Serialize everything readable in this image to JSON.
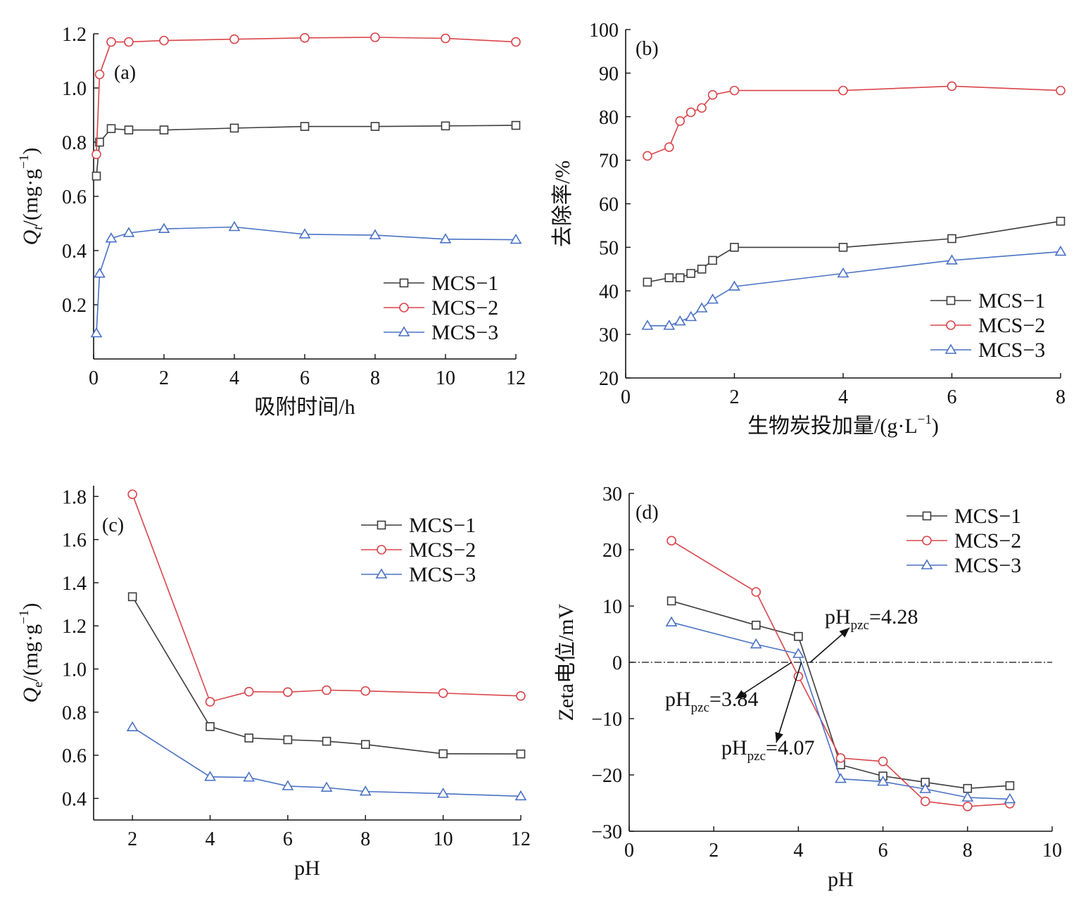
{
  "chart_data": [
    {
      "id": "a",
      "type": "line",
      "panel_label": "(a)",
      "xlabel": "吸附时间/h",
      "ylabel": {
        "main": "Q",
        "sub": "t",
        "unit": "/(mg·g",
        "exp": "−1",
        "close": ")"
      },
      "xlim": [
        0,
        12
      ],
      "ylim": [
        0,
        1.2
      ],
      "xticks": [
        0,
        2,
        4,
        6,
        8,
        10,
        12
      ],
      "xtick_labels": [
        "0",
        "2",
        "4",
        "6",
        "8",
        "10",
        "12"
      ],
      "yticks": [
        0.2,
        0.4,
        0.6,
        0.8,
        1.0,
        1.2
      ],
      "ytick_labels": [
        "0.2",
        "0.4",
        "0.6",
        "0.8",
        "1.0",
        "1.2"
      ],
      "grid": false,
      "legend_position": "bottom-right",
      "series": [
        {
          "name": "MCS−1",
          "color": "#3c3c3c",
          "marker": "square",
          "x": [
            0.08,
            0.17,
            0.5,
            1,
            2,
            4,
            6,
            8,
            10,
            12
          ],
          "y": [
            0.675,
            0.8,
            0.85,
            0.845,
            0.845,
            0.852,
            0.858,
            0.858,
            0.86,
            0.862
          ]
        },
        {
          "name": "MCS−2",
          "color": "#d9454a",
          "marker": "circle",
          "x": [
            0.08,
            0.17,
            0.5,
            1,
            2,
            4,
            6,
            8,
            10,
            12
          ],
          "y": [
            0.755,
            1.05,
            1.17,
            1.17,
            1.175,
            1.18,
            1.185,
            1.187,
            1.183,
            1.17
          ]
        },
        {
          "name": "MCS−3",
          "color": "#4a72c4",
          "marker": "triangle",
          "x": [
            0.08,
            0.17,
            0.5,
            1,
            2,
            4,
            6,
            8,
            10,
            12
          ],
          "y": [
            0.095,
            0.315,
            0.445,
            0.465,
            0.48,
            0.487,
            0.46,
            0.457,
            0.442,
            0.44
          ]
        }
      ]
    },
    {
      "id": "b",
      "type": "line",
      "panel_label": "(b)",
      "xlabel": "生物炭投加量/(g·L",
      "xlabel_exp": "−1",
      "xlabel_close": ")",
      "ylabel_text": "去除率/%",
      "xlim": [
        0,
        8
      ],
      "ylim": [
        20,
        100
      ],
      "xticks": [
        0,
        2,
        4,
        6,
        8
      ],
      "xtick_labels": [
        "0",
        "2",
        "4",
        "6",
        "8"
      ],
      "yticks": [
        20,
        30,
        40,
        50,
        60,
        70,
        80,
        90,
        100
      ],
      "ytick_labels": [
        "20",
        "30",
        "40",
        "50",
        "60",
        "70",
        "80",
        "90",
        "100"
      ],
      "grid": false,
      "legend_position": "bottom-right",
      "series": [
        {
          "name": "MCS−1",
          "color": "#3c3c3c",
          "marker": "square",
          "x": [
            0.4,
            0.8,
            1.0,
            1.2,
            1.4,
            1.6,
            2,
            4,
            6,
            8
          ],
          "y": [
            42,
            43,
            43,
            44,
            45,
            47,
            50,
            50,
            52,
            56
          ]
        },
        {
          "name": "MCS−2",
          "color": "#d9454a",
          "marker": "circle",
          "x": [
            0.4,
            0.8,
            1.0,
            1.2,
            1.4,
            1.6,
            2,
            4,
            6,
            8
          ],
          "y": [
            71,
            73,
            79,
            81,
            82,
            85,
            86,
            86,
            87,
            86
          ]
        },
        {
          "name": "MCS−3",
          "color": "#4a72c4",
          "marker": "triangle",
          "x": [
            0.4,
            0.8,
            1.0,
            1.2,
            1.4,
            1.6,
            2,
            4,
            6,
            8
          ],
          "y": [
            32,
            32,
            33,
            34,
            36,
            38,
            41,
            44,
            47,
            49
          ]
        }
      ]
    },
    {
      "id": "c",
      "type": "line",
      "panel_label": "(c)",
      "xlabel": "pH",
      "ylabel": {
        "main": "Q",
        "sub": "e",
        "unit": "/(mg·g",
        "exp": "−1",
        "close": ")"
      },
      "xlim": [
        1,
        12
      ],
      "ylim": [
        0.3,
        1.85
      ],
      "xticks": [
        2,
        4,
        6,
        8,
        10,
        12
      ],
      "xtick_labels": [
        "2",
        "4",
        "6",
        "8",
        "10",
        "12"
      ],
      "yticks": [
        0.4,
        0.6,
        0.8,
        1.0,
        1.2,
        1.4,
        1.6,
        1.8
      ],
      "ytick_labels": [
        "0.4",
        "0.6",
        "0.8",
        "1.0",
        "1.2",
        "1.4",
        "1.6",
        "1.8"
      ],
      "grid": false,
      "legend_position": "top-right",
      "series": [
        {
          "name": "MCS−1",
          "color": "#3c3c3c",
          "marker": "square",
          "x": [
            2,
            4,
            5,
            6,
            7,
            8,
            10,
            12
          ],
          "y": [
            1.335,
            0.733,
            0.68,
            0.672,
            0.665,
            0.65,
            0.607,
            0.606
          ]
        },
        {
          "name": "MCS−2",
          "color": "#d9454a",
          "marker": "circle",
          "x": [
            2,
            4,
            5,
            6,
            7,
            8,
            10,
            12
          ],
          "y": [
            1.81,
            0.848,
            0.895,
            0.893,
            0.902,
            0.898,
            0.888,
            0.875
          ]
        },
        {
          "name": "MCS−3",
          "color": "#4a72c4",
          "marker": "triangle",
          "x": [
            2,
            4,
            5,
            6,
            7,
            8,
            10,
            12
          ],
          "y": [
            0.73,
            0.5,
            0.497,
            0.457,
            0.45,
            0.432,
            0.422,
            0.41
          ]
        }
      ]
    },
    {
      "id": "d",
      "type": "line",
      "panel_label": "(d)",
      "xlabel": "pH",
      "ylabel_text": "Zeta电位/mV",
      "xlim": [
        0,
        10
      ],
      "ylim": [
        -30,
        30
      ],
      "xticks": [
        0,
        2,
        4,
        6,
        8,
        10
      ],
      "xtick_labels": [
        "0",
        "2",
        "4",
        "6",
        "8",
        "10"
      ],
      "yticks": [
        -30,
        -20,
        -10,
        0,
        10,
        20,
        30
      ],
      "ytick_labels": [
        "−30",
        "−20",
        "−10",
        "0",
        "10",
        "20",
        "30"
      ],
      "grid": false,
      "legend_position": "top-right",
      "zero_line": true,
      "series": [
        {
          "name": "MCS−1",
          "color": "#3c3c3c",
          "marker": "square",
          "x": [
            1,
            3,
            4,
            5,
            6,
            7,
            8,
            9
          ],
          "y": [
            10.9,
            6.6,
            4.6,
            -18.2,
            -20.2,
            -21.3,
            -22.4,
            -21.9
          ]
        },
        {
          "name": "MCS−2",
          "color": "#d9454a",
          "marker": "circle",
          "x": [
            1,
            3,
            4,
            5,
            6,
            7,
            8,
            9
          ],
          "y": [
            21.6,
            12.5,
            -2.5,
            -17.0,
            -17.6,
            -24.7,
            -25.6,
            -25.1
          ]
        },
        {
          "name": "MCS−3",
          "color": "#4a72c4",
          "marker": "triangle",
          "x": [
            1,
            3,
            4,
            5,
            6,
            7,
            8,
            9
          ],
          "y": [
            7.1,
            3.2,
            1.5,
            -20.7,
            -21.2,
            -22.5,
            -24.0,
            -24.3
          ]
        }
      ],
      "annotations": [
        {
          "main": "pH",
          "sub": "pzc",
          "value": "=4.28",
          "point": [
            4.28,
            0
          ]
        },
        {
          "main": "pH",
          "sub": "pzc",
          "value": "=3.84",
          "point": [
            3.84,
            0
          ]
        },
        {
          "main": "pH",
          "sub": "pzc",
          "value": "=4.07",
          "point": [
            4.07,
            0
          ]
        }
      ]
    }
  ]
}
